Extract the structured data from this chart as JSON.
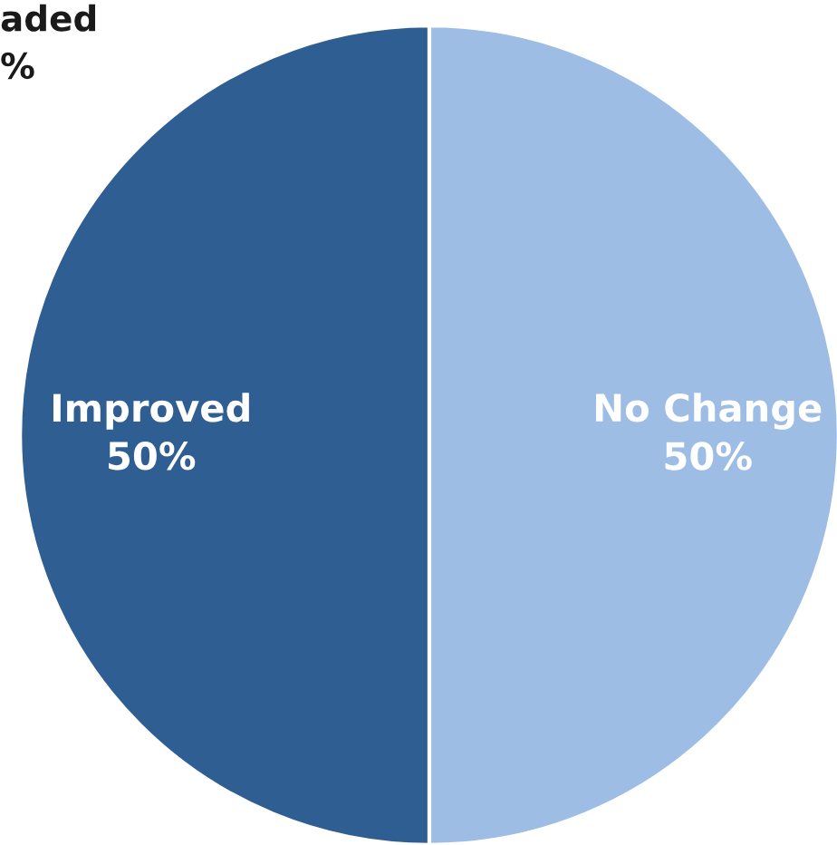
{
  "chart_data": {
    "type": "pie",
    "categories": [
      "Improved",
      "No Change"
    ],
    "values": [
      50,
      50
    ],
    "value_labels": [
      "50%",
      "50%"
    ],
    "colors": [
      "#2f5e93",
      "#9dbde4"
    ],
    "annotations": [
      "aded\n%"
    ]
  }
}
